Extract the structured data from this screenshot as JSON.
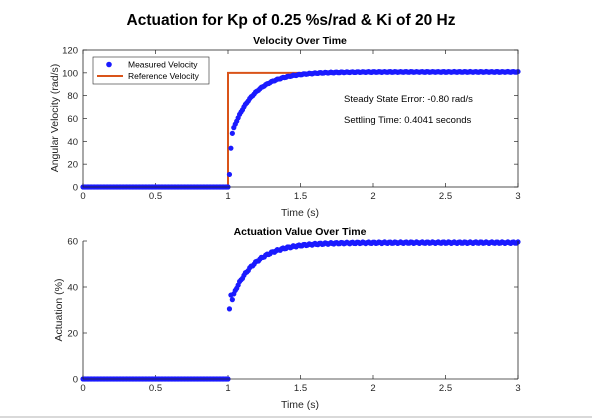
{
  "figure": {
    "title": "Actuation for Kp of 0.25 %s/rad & Ki of 20 Hz",
    "colors": {
      "measured": "#1a1aff",
      "reference": "#d95319",
      "axis": "#262626"
    }
  },
  "chart_data": [
    {
      "type": "line",
      "title": "Velocity Over Time",
      "xlabel": "Time (s)",
      "ylabel": "Angular Velocity (rad/s)",
      "xlim": [
        0,
        3
      ],
      "ylim": [
        0,
        120
      ],
      "xticks": [
        "0",
        "0.5",
        "1",
        "1.5",
        "2",
        "2.5",
        "3"
      ],
      "yticks": [
        "0",
        "20",
        "40",
        "60",
        "80",
        "100",
        "120"
      ],
      "legend": {
        "placement": "top-left",
        "entries": [
          "Measured Velocity",
          "Reference Velocity"
        ]
      },
      "annotations": [
        "Steady State Error: -0.80 rad/s",
        "Settling Time: 0.4041 seconds"
      ],
      "series": [
        {
          "name": "Measured Velocity",
          "style": "markers",
          "description": "0 until t=1 s, jumps to ~33 then rises exponentially to ~100.8",
          "x_start": 0,
          "x_end": 3,
          "step": 0.01,
          "step_time": 1.0,
          "initial_points": [
            [
              1.01,
              11
            ],
            [
              1.02,
              34
            ],
            [
              1.03,
              47
            ],
            [
              1.04,
              52
            ],
            [
              1.05,
              55
            ]
          ],
          "final_value": 100.8,
          "time_constant": 0.15
        },
        {
          "name": "Reference Velocity",
          "style": "line",
          "points": [
            [
              0,
              0
            ],
            [
              1,
              0
            ],
            [
              1,
              100
            ],
            [
              3,
              100
            ]
          ]
        }
      ]
    },
    {
      "type": "scatter",
      "title": "Actuation Value Over Time",
      "xlabel": "Time (s)",
      "ylabel": "Actuation (%)",
      "xlim": [
        0,
        3
      ],
      "ylim": [
        0,
        60
      ],
      "xticks": [
        "0",
        "0.5",
        "1",
        "1.5",
        "2",
        "2.5",
        "3"
      ],
      "yticks": [
        "0",
        "20",
        "40",
        "60"
      ],
      "series": [
        {
          "name": "",
          "style": "markers",
          "description": "0 until t=1 s, jumps to ~30 then rises exponentially to ~59",
          "x_start": 0,
          "x_end": 3,
          "step": 0.01,
          "step_time": 1.0,
          "initial_points": [
            [
              1.01,
              30.5
            ],
            [
              1.02,
              36.5
            ],
            [
              1.03,
              34.5
            ],
            [
              1.04,
              37
            ],
            [
              1.05,
              38.5
            ]
          ],
          "final_value": 59.3,
          "time_constant": 0.16
        }
      ]
    }
  ]
}
